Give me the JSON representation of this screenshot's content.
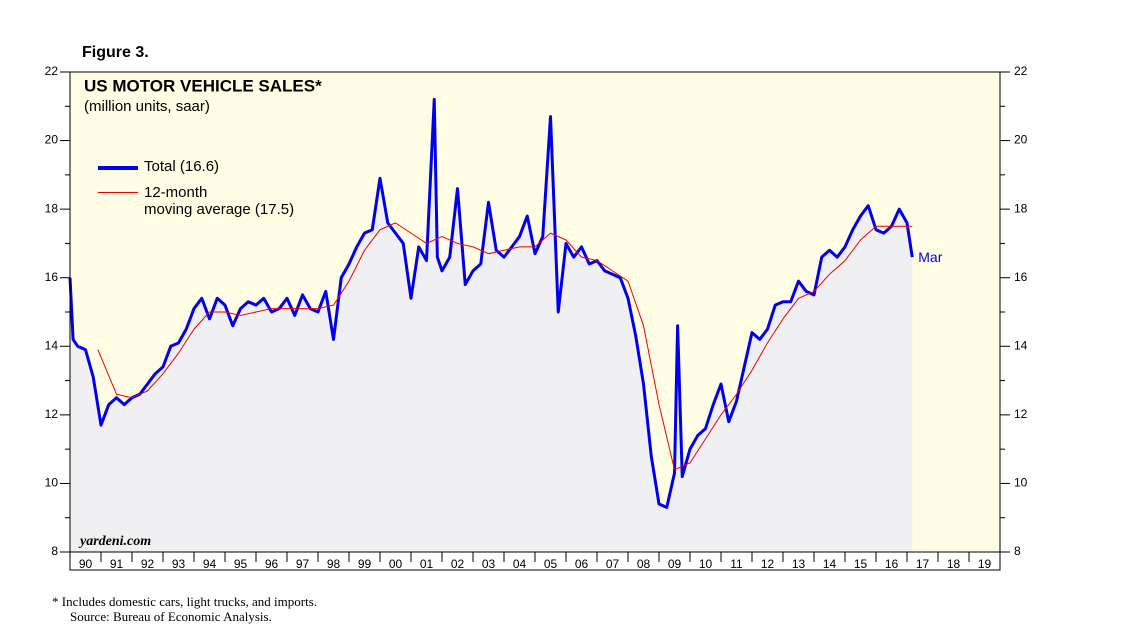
{
  "chart_data": {
    "type": "line",
    "figure_label": "Figure 3.",
    "title": "US MOTOR VEHICLE SALES*",
    "subtitle": "(million units, saar)",
    "annotation": "Mar",
    "watermark": "yardeni.com",
    "footnote": "*  Includes domestic cars, light trucks, and imports.",
    "source": "Source: Bureau of Economic Analysis.",
    "xlim": [
      1990,
      2020
    ],
    "xticks": [
      {
        "value": 1990,
        "label": "90"
      },
      {
        "value": 1991,
        "label": "91"
      },
      {
        "value": 1992,
        "label": "92"
      },
      {
        "value": 1993,
        "label": "93"
      },
      {
        "value": 1994,
        "label": "94"
      },
      {
        "value": 1995,
        "label": "95"
      },
      {
        "value": 1996,
        "label": "96"
      },
      {
        "value": 1997,
        "label": "97"
      },
      {
        "value": 1998,
        "label": "98"
      },
      {
        "value": 1999,
        "label": "99"
      },
      {
        "value": 2000,
        "label": "00"
      },
      {
        "value": 2001,
        "label": "01"
      },
      {
        "value": 2002,
        "label": "02"
      },
      {
        "value": 2003,
        "label": "03"
      },
      {
        "value": 2004,
        "label": "04"
      },
      {
        "value": 2005,
        "label": "05"
      },
      {
        "value": 2006,
        "label": "06"
      },
      {
        "value": 2007,
        "label": "07"
      },
      {
        "value": 2008,
        "label": "08"
      },
      {
        "value": 2009,
        "label": "09"
      },
      {
        "value": 2010,
        "label": "10"
      },
      {
        "value": 2011,
        "label": "11"
      },
      {
        "value": 2012,
        "label": "12"
      },
      {
        "value": 2013,
        "label": "13"
      },
      {
        "value": 2014,
        "label": "14"
      },
      {
        "value": 2015,
        "label": "15"
      },
      {
        "value": 2016,
        "label": "16"
      },
      {
        "value": 2017,
        "label": "17"
      },
      {
        "value": 2018,
        "label": "18"
      },
      {
        "value": 2019,
        "label": "19"
      }
    ],
    "ylim": [
      8,
      22
    ],
    "yticks": [
      8,
      10,
      12,
      14,
      16,
      18,
      20,
      22
    ],
    "series": [
      {
        "name": "Total (16.6)",
        "color": "#0000ee",
        "x": [
          1990.0,
          1990.1,
          1990.25,
          1990.5,
          1990.75,
          1991.0,
          1991.25,
          1991.5,
          1991.75,
          1992.0,
          1992.25,
          1992.5,
          1992.75,
          1993.0,
          1993.25,
          1993.5,
          1993.75,
          1994.0,
          1994.25,
          1994.5,
          1994.75,
          1995.0,
          1995.25,
          1995.5,
          1995.75,
          1996.0,
          1996.25,
          1996.5,
          1996.75,
          1997.0,
          1997.25,
          1997.5,
          1997.75,
          1998.0,
          1998.25,
          1998.5,
          1998.75,
          1999.0,
          1999.25,
          1999.5,
          1999.75,
          2000.0,
          2000.25,
          2000.5,
          2000.75,
          2001.0,
          2001.25,
          2001.5,
          2001.75,
          2001.85,
          2002.0,
          2002.25,
          2002.5,
          2002.75,
          2003.0,
          2003.25,
          2003.5,
          2003.75,
          2004.0,
          2004.25,
          2004.5,
          2004.75,
          2005.0,
          2005.25,
          2005.5,
          2005.75,
          2006.0,
          2006.25,
          2006.5,
          2006.75,
          2007.0,
          2007.25,
          2007.5,
          2007.75,
          2008.0,
          2008.25,
          2008.5,
          2008.75,
          2009.0,
          2009.25,
          2009.5,
          2009.6,
          2009.75,
          2010.0,
          2010.25,
          2010.5,
          2010.75,
          2011.0,
          2011.25,
          2011.5,
          2011.75,
          2012.0,
          2012.25,
          2012.5,
          2012.75,
          2013.0,
          2013.25,
          2013.5,
          2013.75,
          2014.0,
          2014.25,
          2014.5,
          2014.75,
          2015.0,
          2015.25,
          2015.5,
          2015.75,
          2016.0,
          2016.25,
          2016.5,
          2016.75,
          2017.0,
          2017.17
        ],
        "values": [
          16.0,
          14.2,
          14.0,
          13.9,
          13.1,
          11.7,
          12.3,
          12.5,
          12.3,
          12.5,
          12.6,
          12.9,
          13.2,
          13.4,
          14.0,
          14.1,
          14.5,
          15.1,
          15.4,
          14.8,
          15.4,
          15.2,
          14.6,
          15.1,
          15.3,
          15.2,
          15.4,
          15.0,
          15.1,
          15.4,
          14.9,
          15.5,
          15.1,
          15.0,
          15.6,
          14.2,
          16.0,
          16.4,
          16.9,
          17.3,
          17.4,
          18.9,
          17.6,
          17.3,
          17.0,
          15.4,
          16.9,
          16.5,
          21.2,
          16.6,
          16.2,
          16.6,
          18.6,
          15.8,
          16.2,
          16.4,
          18.2,
          16.8,
          16.6,
          16.9,
          17.2,
          17.8,
          16.7,
          17.2,
          20.7,
          15.0,
          17.0,
          16.6,
          16.9,
          16.4,
          16.5,
          16.2,
          16.1,
          16.0,
          15.4,
          14.3,
          12.9,
          10.8,
          9.4,
          9.3,
          10.3,
          14.6,
          10.2,
          11.0,
          11.4,
          11.6,
          12.3,
          12.9,
          11.8,
          12.4,
          13.4,
          14.4,
          14.2,
          14.5,
          15.2,
          15.3,
          15.3,
          15.9,
          15.6,
          15.5,
          16.6,
          16.8,
          16.6,
          16.9,
          17.4,
          17.8,
          18.1,
          17.4,
          17.3,
          17.5,
          18.0,
          17.6,
          16.6
        ]
      },
      {
        "name": "12-month\nmoving average (17.5)",
        "color": "#ee0000",
        "x": [
          1990.9,
          1991.5,
          1992.0,
          1992.5,
          1993.0,
          1993.5,
          1994.0,
          1994.5,
          1995.0,
          1995.5,
          1996.0,
          1996.5,
          1997.0,
          1997.5,
          1998.0,
          1998.5,
          1999.0,
          1999.5,
          2000.0,
          2000.5,
          2001.0,
          2001.5,
          2002.0,
          2002.5,
          2003.0,
          2003.5,
          2004.0,
          2004.5,
          2005.0,
          2005.5,
          2006.0,
          2006.5,
          2007.0,
          2007.5,
          2008.0,
          2008.5,
          2009.0,
          2009.5,
          2010.0,
          2010.5,
          2011.0,
          2011.5,
          2012.0,
          2012.5,
          2013.0,
          2013.5,
          2014.0,
          2014.5,
          2015.0,
          2015.5,
          2016.0,
          2016.5,
          2017.0,
          2017.17
        ],
        "values": [
          13.9,
          12.6,
          12.5,
          12.7,
          13.2,
          13.8,
          14.5,
          15.0,
          15.0,
          14.9,
          15.0,
          15.1,
          15.1,
          15.1,
          15.1,
          15.2,
          15.9,
          16.8,
          17.4,
          17.6,
          17.3,
          17.0,
          17.2,
          17.0,
          16.9,
          16.7,
          16.8,
          16.9,
          16.9,
          17.3,
          17.1,
          16.6,
          16.5,
          16.2,
          15.9,
          14.6,
          12.3,
          10.4,
          10.6,
          11.3,
          12.0,
          12.6,
          13.3,
          14.1,
          14.8,
          15.4,
          15.6,
          16.1,
          16.5,
          17.1,
          17.5,
          17.5,
          17.5,
          17.5
        ]
      }
    ]
  }
}
